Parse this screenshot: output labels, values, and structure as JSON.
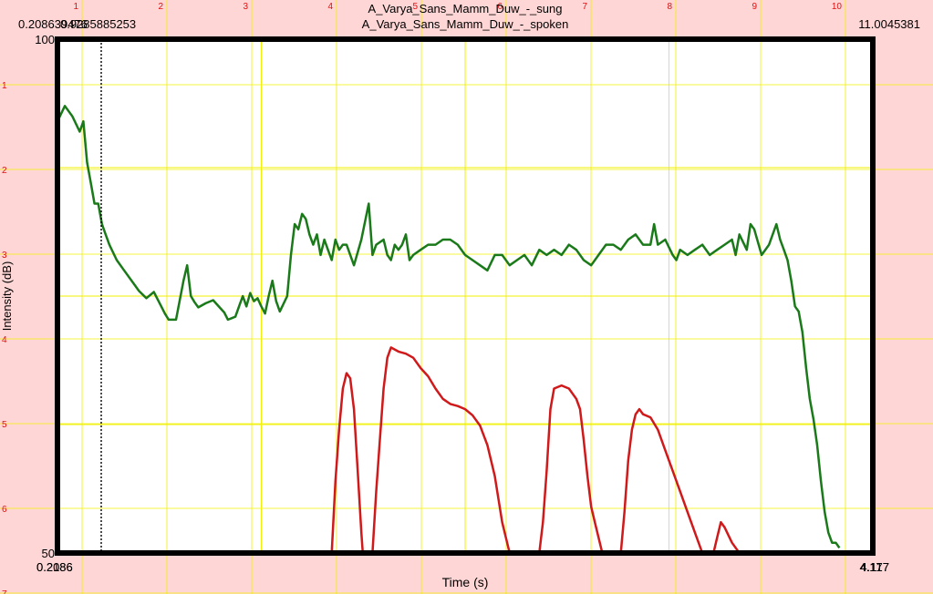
{
  "chart_data": {
    "type": "line",
    "titles": [
      "A_Varya_Sans_Mamm_Duw_-_sung",
      "A_Varya_Sans_Mamm_Duw_-_spoken"
    ],
    "xlabel": "Time (s)",
    "ylabel": "Intensity (dB)",
    "ylim": [
      50,
      100
    ],
    "y_top_label": "100",
    "y_bottom_label": "50",
    "x_start_label": "0.2086",
    "x_start_overlap_label": "0.2186",
    "x_end_label": "4.117",
    "x_end_overlap_label": "4.177",
    "top_left_label": "0.208639476",
    "top_cursor_label": "0.9285885253",
    "top_right_label": "11.0045381",
    "grid": true,
    "outer_x_ticks": [
      "1",
      "2",
      "3",
      "4",
      "5",
      "6",
      "7",
      "8",
      "9",
      "10"
    ],
    "outer_y_ticks": [
      "1",
      "2",
      "3",
      "4",
      "5",
      "6",
      "7"
    ],
    "colors": {
      "sung": "#1a7a1a",
      "spoken": "#d0191a",
      "grid": "#f0f000",
      "frame": "#000000",
      "axis_ticks": "#e01010",
      "background": "#ffd6d6"
    },
    "sung_series": [
      [
        0.0,
        92.0
      ],
      [
        0.1,
        93.5
      ],
      [
        0.2,
        92.5
      ],
      [
        0.3,
        91.0
      ],
      [
        0.35,
        92.0
      ],
      [
        0.4,
        88.0
      ],
      [
        0.45,
        86.0
      ],
      [
        0.5,
        84.0
      ],
      [
        0.55,
        84.0
      ],
      [
        0.6,
        82.0
      ],
      [
        0.65,
        81.0
      ],
      [
        0.7,
        80.0
      ],
      [
        0.8,
        78.5
      ],
      [
        0.9,
        77.5
      ],
      [
        1.0,
        76.5
      ],
      [
        1.1,
        75.5
      ],
      [
        1.2,
        74.8
      ],
      [
        1.3,
        75.4
      ],
      [
        1.4,
        74.0
      ],
      [
        1.45,
        73.3
      ],
      [
        1.5,
        72.7
      ],
      [
        1.6,
        72.7
      ],
      [
        1.7,
        76.5
      ],
      [
        1.75,
        78.0
      ],
      [
        1.8,
        75.0
      ],
      [
        1.85,
        74.4
      ],
      [
        1.9,
        73.9
      ],
      [
        2.0,
        74.3
      ],
      [
        2.1,
        74.6
      ],
      [
        2.2,
        73.8
      ],
      [
        2.25,
        73.4
      ],
      [
        2.3,
        72.7
      ],
      [
        2.4,
        73.0
      ],
      [
        2.45,
        74.0
      ],
      [
        2.5,
        75.0
      ],
      [
        2.55,
        74.0
      ],
      [
        2.6,
        75.3
      ],
      [
        2.65,
        74.5
      ],
      [
        2.7,
        74.8
      ],
      [
        2.75,
        74.0
      ],
      [
        2.8,
        73.3
      ],
      [
        2.85,
        75.0
      ],
      [
        2.9,
        76.5
      ],
      [
        2.95,
        74.5
      ],
      [
        3.0,
        73.5
      ],
      [
        3.1,
        75.0
      ],
      [
        3.15,
        79.0
      ],
      [
        3.2,
        82.0
      ],
      [
        3.25,
        81.5
      ],
      [
        3.3,
        83.0
      ],
      [
        3.35,
        82.5
      ],
      [
        3.4,
        81.0
      ],
      [
        3.45,
        80.0
      ],
      [
        3.5,
        81.0
      ],
      [
        3.55,
        79.0
      ],
      [
        3.6,
        80.5
      ],
      [
        3.65,
        79.5
      ],
      [
        3.7,
        78.5
      ],
      [
        3.75,
        80.5
      ],
      [
        3.8,
        79.5
      ],
      [
        3.85,
        80.0
      ],
      [
        3.9,
        80.0
      ],
      [
        4.0,
        78.0
      ],
      [
        4.1,
        80.5
      ],
      [
        4.2,
        84.0
      ],
      [
        4.25,
        79.0
      ],
      [
        4.3,
        80.0
      ],
      [
        4.4,
        80.5
      ],
      [
        4.45,
        79.0
      ],
      [
        4.5,
        78.5
      ],
      [
        4.55,
        80.0
      ],
      [
        4.6,
        79.5
      ],
      [
        4.65,
        80.0
      ],
      [
        4.7,
        81.0
      ],
      [
        4.75,
        78.5
      ],
      [
        4.8,
        79.0
      ],
      [
        4.9,
        79.5
      ],
      [
        5.0,
        80.0
      ],
      [
        5.1,
        80.0
      ],
      [
        5.2,
        80.5
      ],
      [
        5.3,
        80.5
      ],
      [
        5.4,
        80.0
      ],
      [
        5.5,
        79.0
      ],
      [
        5.6,
        78.5
      ],
      [
        5.7,
        78.0
      ],
      [
        5.8,
        77.5
      ],
      [
        5.9,
        79.0
      ],
      [
        6.0,
        79.0
      ],
      [
        6.1,
        78.0
      ],
      [
        6.2,
        78.5
      ],
      [
        6.3,
        79.0
      ],
      [
        6.4,
        78.0
      ],
      [
        6.5,
        79.5
      ],
      [
        6.6,
        79.0
      ],
      [
        6.7,
        79.5
      ],
      [
        6.8,
        79.0
      ],
      [
        6.9,
        80.0
      ],
      [
        7.0,
        79.5
      ],
      [
        7.1,
        78.5
      ],
      [
        7.2,
        78.0
      ],
      [
        7.3,
        79.0
      ],
      [
        7.4,
        80.0
      ],
      [
        7.5,
        80.0
      ],
      [
        7.6,
        79.5
      ],
      [
        7.7,
        80.5
      ],
      [
        7.8,
        81.0
      ],
      [
        7.9,
        80.0
      ],
      [
        8.0,
        80.0
      ],
      [
        8.05,
        82.0
      ],
      [
        8.1,
        80.0
      ],
      [
        8.2,
        80.5
      ],
      [
        8.3,
        79.0
      ],
      [
        8.35,
        78.5
      ],
      [
        8.4,
        79.5
      ],
      [
        8.5,
        79.0
      ],
      [
        8.6,
        79.5
      ],
      [
        8.7,
        80.0
      ],
      [
        8.8,
        79.0
      ],
      [
        8.9,
        79.5
      ],
      [
        9.0,
        80.0
      ],
      [
        9.1,
        80.5
      ],
      [
        9.15,
        79.0
      ],
      [
        9.2,
        81.0
      ],
      [
        9.3,
        79.5
      ],
      [
        9.35,
        82.0
      ],
      [
        9.4,
        81.5
      ],
      [
        9.5,
        79.0
      ],
      [
        9.6,
        80.0
      ],
      [
        9.7,
        82.0
      ],
      [
        9.75,
        80.5
      ],
      [
        9.8,
        79.5
      ],
      [
        9.85,
        78.5
      ],
      [
        9.9,
        76.5
      ],
      [
        9.95,
        74.0
      ],
      [
        10.0,
        73.5
      ],
      [
        10.05,
        71.5
      ],
      [
        10.1,
        68.0
      ],
      [
        10.15,
        65.0
      ],
      [
        10.2,
        63.0
      ],
      [
        10.25,
        60.5
      ],
      [
        10.3,
        57.0
      ],
      [
        10.35,
        54.0
      ],
      [
        10.4,
        52.0
      ],
      [
        10.45,
        51.0
      ],
      [
        10.5,
        51.0
      ],
      [
        10.55,
        50.5
      ]
    ],
    "spoken_series": [
      [
        3.7,
        50.0
      ],
      [
        3.75,
        57.0
      ],
      [
        3.8,
        62.0
      ],
      [
        3.85,
        66.0
      ],
      [
        3.9,
        67.5
      ],
      [
        3.95,
        67.0
      ],
      [
        4.0,
        64.0
      ],
      [
        4.05,
        58.0
      ],
      [
        4.1,
        52.0
      ],
      [
        4.12,
        50.0
      ],
      [
        4.25,
        50.0
      ],
      [
        4.3,
        56.0
      ],
      [
        4.35,
        61.0
      ],
      [
        4.4,
        66.0
      ],
      [
        4.45,
        69.0
      ],
      [
        4.5,
        70.0
      ],
      [
        4.6,
        69.6
      ],
      [
        4.7,
        69.4
      ],
      [
        4.8,
        69.0
      ],
      [
        4.9,
        68.0
      ],
      [
        5.0,
        67.2
      ],
      [
        5.1,
        66.0
      ],
      [
        5.2,
        65.0
      ],
      [
        5.3,
        64.5
      ],
      [
        5.35,
        64.4
      ],
      [
        5.4,
        64.3
      ],
      [
        5.5,
        64.0
      ],
      [
        5.6,
        63.4
      ],
      [
        5.7,
        62.4
      ],
      [
        5.8,
        60.5
      ],
      [
        5.9,
        57.5
      ],
      [
        6.0,
        53.0
      ],
      [
        6.1,
        50.0
      ],
      [
        6.5,
        50.0
      ],
      [
        6.55,
        53.0
      ],
      [
        6.6,
        58.0
      ],
      [
        6.65,
        64.0
      ],
      [
        6.7,
        66.0
      ],
      [
        6.8,
        66.3
      ],
      [
        6.9,
        66.0
      ],
      [
        7.0,
        65.0
      ],
      [
        7.05,
        64.0
      ],
      [
        7.1,
        61.0
      ],
      [
        7.15,
        57.5
      ],
      [
        7.2,
        54.5
      ],
      [
        7.25,
        53.0
      ],
      [
        7.3,
        51.5
      ],
      [
        7.35,
        50.0
      ],
      [
        7.6,
        50.0
      ],
      [
        7.65,
        54.0
      ],
      [
        7.7,
        59.0
      ],
      [
        7.75,
        62.0
      ],
      [
        7.8,
        63.5
      ],
      [
        7.85,
        64.0
      ],
      [
        7.9,
        63.5
      ],
      [
        8.0,
        63.2
      ],
      [
        8.1,
        62.0
      ],
      [
        8.2,
        60.0
      ],
      [
        8.3,
        58.0
      ],
      [
        8.4,
        56.0
      ],
      [
        8.5,
        54.0
      ],
      [
        8.6,
        52.0
      ],
      [
        8.7,
        50.0
      ],
      [
        8.85,
        50.0
      ],
      [
        8.9,
        51.5
      ],
      [
        8.95,
        53.0
      ],
      [
        9.0,
        52.5
      ],
      [
        9.1,
        51.0
      ],
      [
        9.2,
        50.0
      ]
    ]
  }
}
